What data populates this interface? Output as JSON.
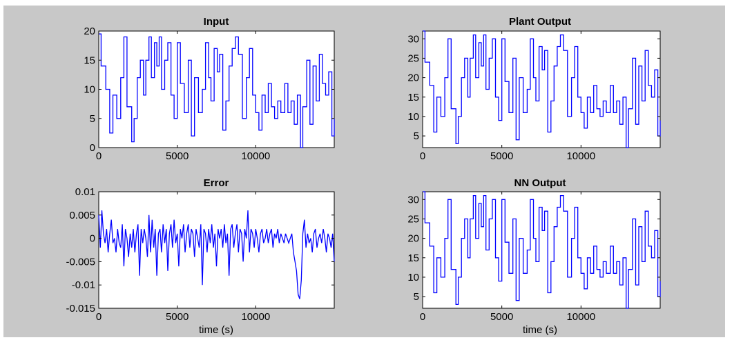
{
  "figure": {
    "background": "#c8c8c8",
    "line_color": "#0000ff"
  },
  "chart_data": [
    {
      "type": "line",
      "title": "Input",
      "xlabel": "",
      "ylabel": "",
      "xlim": [
        0,
        15000
      ],
      "ylim": [
        0,
        20
      ],
      "xticks": [
        0,
        5000,
        10000
      ],
      "xtick_labels": [
        "0",
        "5000",
        "10000"
      ],
      "yticks": [
        0,
        5,
        10,
        15,
        20
      ],
      "ytick_labels": [
        "0",
        "5",
        "10",
        "15",
        "20"
      ],
      "grid": false,
      "step": true,
      "series": [
        {
          "color": "#0000ff",
          "x": [
            0,
            150,
            450,
            700,
            900,
            1150,
            1400,
            1600,
            1800,
            2100,
            2250,
            2450,
            2650,
            2850,
            3000,
            3200,
            3350,
            3550,
            3700,
            3850,
            4000,
            4200,
            4400,
            4600,
            4800,
            5000,
            5200,
            5450,
            5700,
            5900,
            6100,
            6350,
            6600,
            6800,
            7000,
            7150,
            7350,
            7550,
            7700,
            7900,
            8100,
            8300,
            8500,
            8700,
            8900,
            9150,
            9400,
            9600,
            9800,
            10000,
            10200,
            10400,
            10600,
            10800,
            11000,
            11200,
            11400,
            11600,
            11850,
            12050,
            12250,
            12450,
            12650,
            12850,
            13000,
            13250,
            13450,
            13650,
            13850,
            14050,
            14250,
            14450,
            14650,
            14850,
            15000
          ],
          "y": [
            19.5,
            14,
            10,
            2.5,
            9,
            5,
            12,
            19,
            7,
            1,
            5,
            12,
            15,
            9,
            15,
            19,
            12,
            18,
            14,
            19,
            10,
            15,
            18,
            9,
            5,
            18,
            11,
            6,
            15,
            2,
            12,
            6,
            10,
            18,
            12,
            8,
            17,
            13,
            16,
            3,
            8,
            14,
            17,
            19,
            16,
            5,
            12,
            17,
            9,
            6,
            3,
            9,
            6,
            11,
            7,
            5,
            8,
            6,
            11,
            6,
            8,
            4,
            9,
            0,
            7,
            15,
            4,
            14,
            8,
            16,
            11,
            9,
            13,
            2,
            5
          ]
        }
      ]
    },
    {
      "type": "line",
      "title": "Plant Output",
      "xlabel": "",
      "ylabel": "",
      "xlim": [
        0,
        15000
      ],
      "ylim": [
        2,
        32
      ],
      "xticks": [
        0,
        5000,
        10000
      ],
      "xtick_labels": [
        "0",
        "5000",
        "10000"
      ],
      "yticks": [
        5,
        10,
        15,
        20,
        25,
        30
      ],
      "ytick_labels": [
        "5",
        "10",
        "15",
        "20",
        "25",
        "30"
      ],
      "grid": false,
      "step": true,
      "series": [
        {
          "color": "#0000ff",
          "x": [
            0,
            150,
            450,
            700,
            900,
            1150,
            1400,
            1600,
            1800,
            2100,
            2250,
            2450,
            2650,
            2850,
            3000,
            3200,
            3350,
            3550,
            3700,
            3850,
            4000,
            4200,
            4400,
            4600,
            4800,
            5000,
            5200,
            5450,
            5700,
            5900,
            6100,
            6350,
            6600,
            6800,
            7000,
            7150,
            7350,
            7550,
            7700,
            7900,
            8100,
            8300,
            8500,
            8700,
            8900,
            9150,
            9400,
            9600,
            9800,
            10000,
            10200,
            10400,
            10600,
            10800,
            11000,
            11200,
            11400,
            11600,
            11850,
            12050,
            12250,
            12450,
            12650,
            12850,
            13000,
            13250,
            13450,
            13650,
            13850,
            14050,
            14250,
            14450,
            14650,
            14850,
            15000
          ],
          "y": [
            32,
            24,
            18,
            6,
            15,
            10,
            20,
            30,
            12,
            3,
            10,
            20,
            25,
            15,
            25,
            31,
            20,
            29,
            23,
            31,
            17,
            25,
            30,
            15,
            9,
            30,
            19,
            11,
            25,
            4,
            20,
            11,
            17,
            30,
            20,
            14,
            28,
            22,
            27,
            6,
            14,
            23,
            28,
            31,
            27,
            10,
            20,
            28,
            15,
            11,
            7,
            15,
            11,
            18,
            12,
            10,
            14,
            11,
            18,
            11,
            14,
            8,
            15,
            2,
            12,
            25,
            8,
            23,
            14,
            27,
            18,
            15,
            22,
            5,
            9
          ]
        }
      ]
    },
    {
      "type": "line",
      "title": "Error",
      "xlabel": "time (s)",
      "ylabel": "",
      "xlim": [
        0,
        15000
      ],
      "ylim": [
        -0.015,
        0.01
      ],
      "xticks": [
        0,
        5000,
        10000
      ],
      "xtick_labels": [
        "0",
        "5000",
        "10000"
      ],
      "yticks": [
        -0.015,
        -0.01,
        -0.005,
        0,
        0.005,
        0.01
      ],
      "ytick_labels": [
        "-0.015",
        "-0.01",
        "-0.005",
        "0",
        "0.005",
        "0.01"
      ],
      "grid": false,
      "step": false,
      "series": [
        {
          "color": "#0000ff",
          "x": [
            0,
            100,
            200,
            300,
            400,
            500,
            600,
            700,
            800,
            900,
            1000,
            1100,
            1200,
            1300,
            1400,
            1500,
            1600,
            1700,
            1800,
            1900,
            2000,
            2100,
            2200,
            2300,
            2400,
            2500,
            2600,
            2700,
            2800,
            2900,
            3000,
            3100,
            3200,
            3300,
            3400,
            3500,
            3600,
            3700,
            3800,
            3900,
            4000,
            4100,
            4200,
            4300,
            4400,
            4500,
            4600,
            4700,
            4800,
            4900,
            5000,
            5100,
            5200,
            5300,
            5400,
            5500,
            5600,
            5700,
            5800,
            5900,
            6000,
            6100,
            6200,
            6300,
            6400,
            6500,
            6600,
            6700,
            6800,
            6900,
            7000,
            7100,
            7200,
            7300,
            7400,
            7500,
            7600,
            7700,
            7800,
            7900,
            8000,
            8100,
            8200,
            8300,
            8400,
            8500,
            8600,
            8700,
            8800,
            8900,
            9000,
            9100,
            9200,
            9300,
            9400,
            9500,
            9600,
            9700,
            9800,
            9900,
            10000,
            10100,
            10200,
            10300,
            10400,
            10500,
            10600,
            10700,
            10800,
            10900,
            11000,
            11100,
            11200,
            11300,
            11400,
            11500,
            11600,
            11700,
            11800,
            11900,
            12000,
            12100,
            12200,
            12300,
            12400,
            12500,
            12600,
            12700,
            12800,
            12900,
            13000,
            13100,
            13200,
            13300,
            13400,
            13500,
            13600,
            13700,
            13800,
            13900,
            14000,
            14100,
            14200,
            14300,
            14400,
            14500,
            14600,
            14700,
            14800,
            14900,
            15000
          ],
          "y": [
            0.005,
            -0.002,
            0.006,
            0.001,
            -0.001,
            0.002,
            -0.003,
            0.001,
            0.004,
            -0.001,
            0,
            -0.003,
            0.002,
            -0.001,
            -0.002,
            0.003,
            -0.006,
            0.002,
            0,
            -0.004,
            0.001,
            -0.002,
            0.002,
            -0.003,
            0.001,
            0.003,
            -0.008,
            0.002,
            -0.001,
            0.002,
            0,
            -0.004,
            0.005,
            -0.003,
            0.004,
            -0.002,
            0.002,
            -0.008,
            0.001,
            0.002,
            -0.003,
            0.003,
            -0.001,
            0.002,
            -0.007,
            0.001,
            0.003,
            -0.002,
            0.004,
            -0.001,
            0.001,
            -0.006,
            0.002,
            0,
            0.003,
            -0.003,
            0.001,
            0.003,
            -0.002,
            0.002,
            0.001,
            -0.004,
            0.002,
            0,
            -0.002,
            0.003,
            -0.01,
            0.002,
            0.001,
            -0.003,
            0.002,
            -0.001,
            0.003,
            -0.002,
            0.001,
            -0.006,
            0.002,
            0,
            0.002,
            -0.002,
            0.003,
            -0.001,
            0.001,
            -0.008,
            0.002,
            0.003,
            -0.002,
            0.001,
            0.003,
            -0.003,
            0.002,
            0.001,
            -0.005,
            0.002,
            0,
            0.006,
            -0.003,
            0.002,
            0.001,
            -0.002,
            0.002,
            0,
            -0.003,
            0.001,
            0.002,
            -0.001,
            0,
            0.002,
            -0.001,
            0.001,
            0.002,
            -0.002,
            0.001,
            0,
            0.002,
            -0.001,
            0.001,
            0,
            -0.001,
            0.001,
            0,
            -0.001,
            0,
            0.001,
            -0.003,
            -0.005,
            -0.007,
            -0.012,
            -0.013,
            -0.009,
            0.001,
            0.004,
            -0.002,
            0.001,
            -0.001,
            0,
            -0.003,
            0.001,
            0.002,
            -0.002,
            0,
            0.001,
            -0.001,
            0.002,
            0,
            -0.003,
            0.001,
            0,
            -0.002,
            0.001,
            -0.005
          ]
        }
      ]
    },
    {
      "type": "line",
      "title": "NN Output",
      "xlabel": "time (s)",
      "ylabel": "",
      "xlim": [
        0,
        15000
      ],
      "ylim": [
        2,
        32
      ],
      "xticks": [
        0,
        5000,
        10000
      ],
      "xtick_labels": [
        "0",
        "5000",
        "10000"
      ],
      "yticks": [
        5,
        10,
        15,
        20,
        25,
        30
      ],
      "ytick_labels": [
        "5",
        "10",
        "15",
        "20",
        "25",
        "30"
      ],
      "grid": false,
      "step": true,
      "series": [
        {
          "color": "#0000ff",
          "x": [
            0,
            150,
            450,
            700,
            900,
            1150,
            1400,
            1600,
            1800,
            2100,
            2250,
            2450,
            2650,
            2850,
            3000,
            3200,
            3350,
            3550,
            3700,
            3850,
            4000,
            4200,
            4400,
            4600,
            4800,
            5000,
            5200,
            5450,
            5700,
            5900,
            6100,
            6350,
            6600,
            6800,
            7000,
            7150,
            7350,
            7550,
            7700,
            7900,
            8100,
            8300,
            8500,
            8700,
            8900,
            9150,
            9400,
            9600,
            9800,
            10000,
            10200,
            10400,
            10600,
            10800,
            11000,
            11200,
            11400,
            11600,
            11850,
            12050,
            12250,
            12450,
            12650,
            12850,
            13000,
            13250,
            13450,
            13650,
            13850,
            14050,
            14250,
            14450,
            14650,
            14850,
            15000
          ],
          "y": [
            32,
            24,
            18,
            6,
            15,
            10,
            20,
            30,
            12,
            3,
            10,
            20,
            25,
            15,
            25,
            31,
            20,
            29,
            23,
            31,
            17,
            25,
            30,
            15,
            9,
            30,
            19,
            11,
            25,
            4,
            20,
            11,
            17,
            30,
            20,
            14,
            28,
            22,
            27,
            6,
            14,
            23,
            28,
            31,
            27,
            10,
            20,
            28,
            15,
            11,
            7,
            15,
            11,
            18,
            12,
            10,
            14,
            11,
            18,
            11,
            14,
            8,
            15,
            2,
            12,
            25,
            8,
            23,
            14,
            27,
            18,
            15,
            22,
            5,
            9
          ]
        }
      ]
    }
  ]
}
